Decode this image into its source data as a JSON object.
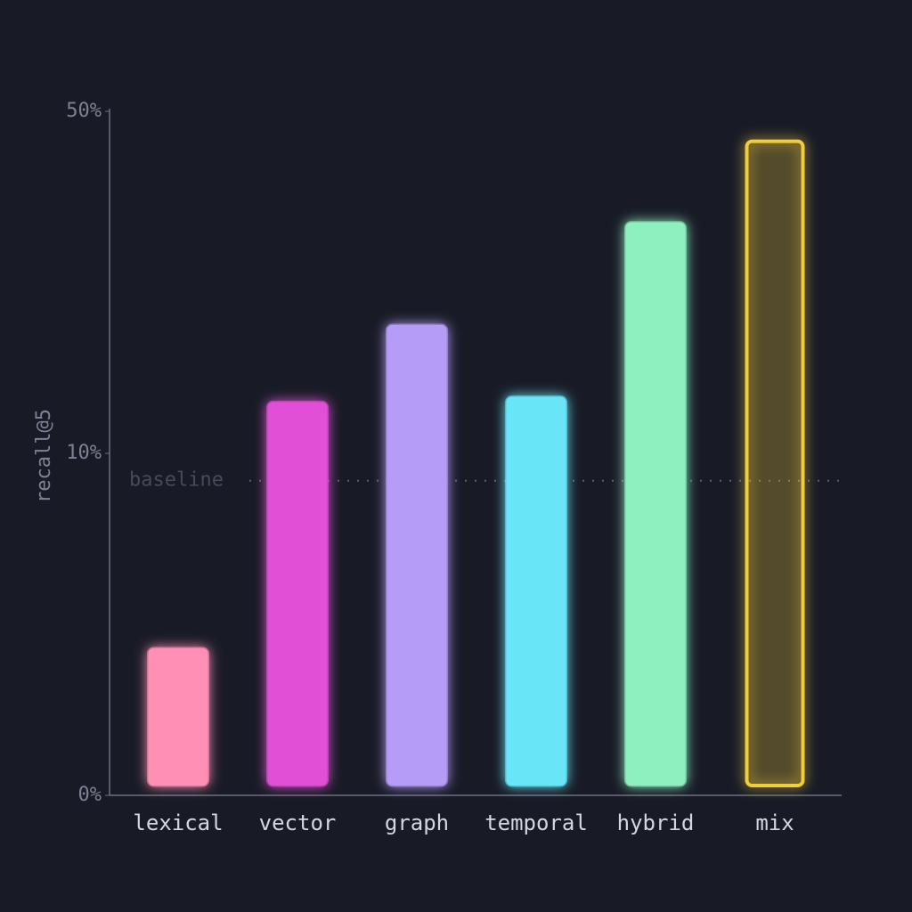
{
  "chart_data": {
    "type": "bar",
    "y_label": "recall@5",
    "categories": [
      "lexical",
      "vector",
      "graph",
      "temporal",
      "hybrid",
      "mix"
    ],
    "values": [
      4.3,
      16.0,
      25.0,
      16.6,
      37.0,
      46.5
    ],
    "colors": [
      "#ff8fb4",
      "#e04fd6",
      "#b49cf7",
      "#68e6f8",
      "#8ef0be",
      "#f1cc3a"
    ],
    "outlined": [
      false,
      false,
      false,
      false,
      false,
      true
    ],
    "ylim": [
      0,
      50
    ],
    "yscale": "piecewise-linear",
    "yticks": [
      {
        "value": 0,
        "label": "0%"
      },
      {
        "value": 10,
        "label": "10%"
      },
      {
        "value": 50,
        "label": "50%"
      }
    ],
    "baseline": {
      "label": "baseline",
      "value": 9.2
    }
  }
}
